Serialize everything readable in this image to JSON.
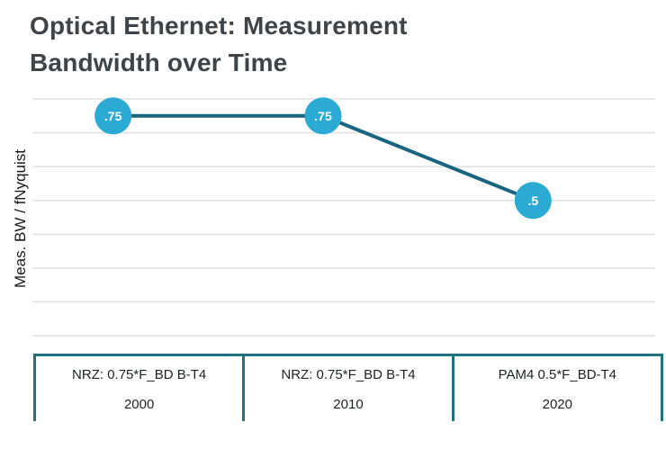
{
  "page": {
    "title": "Optical Ethernet: Measurement\nBandwidth over Time"
  },
  "chart_data": {
    "type": "line",
    "title": "Optical Ethernet: Measurement Bandwidth over Time",
    "ylabel": "Meas. BW / fNyquist",
    "xlabel": "",
    "categories": [
      {
        "modulation": "NRZ: 0.75*F_BD B-T4",
        "year": "2000"
      },
      {
        "modulation": "NRZ: 0.75*F_BD B-T4",
        "year": "2010"
      },
      {
        "modulation": "PAM4 0.5*F_BD-T4",
        "year": "2020"
      }
    ],
    "values": [
      0.75,
      0.75,
      0.5
    ],
    "point_labels": [
      ".75",
      ".75",
      ".5"
    ],
    "ylim": [
      0.1,
      0.8
    ],
    "gridlines": [
      0.8,
      0.7,
      0.6,
      0.5,
      0.4,
      0.3,
      0.2,
      0.1
    ],
    "grid": "horizontal-only",
    "legend": "none",
    "colors": {
      "point_fill": "#2baad3",
      "point_text": "#ffffff",
      "line": "#19657f",
      "grid": "#e2e2e2",
      "axis_table_border": "#1f7380",
      "title_text": "#3f4449",
      "axis_text": "#1e2124"
    }
  }
}
